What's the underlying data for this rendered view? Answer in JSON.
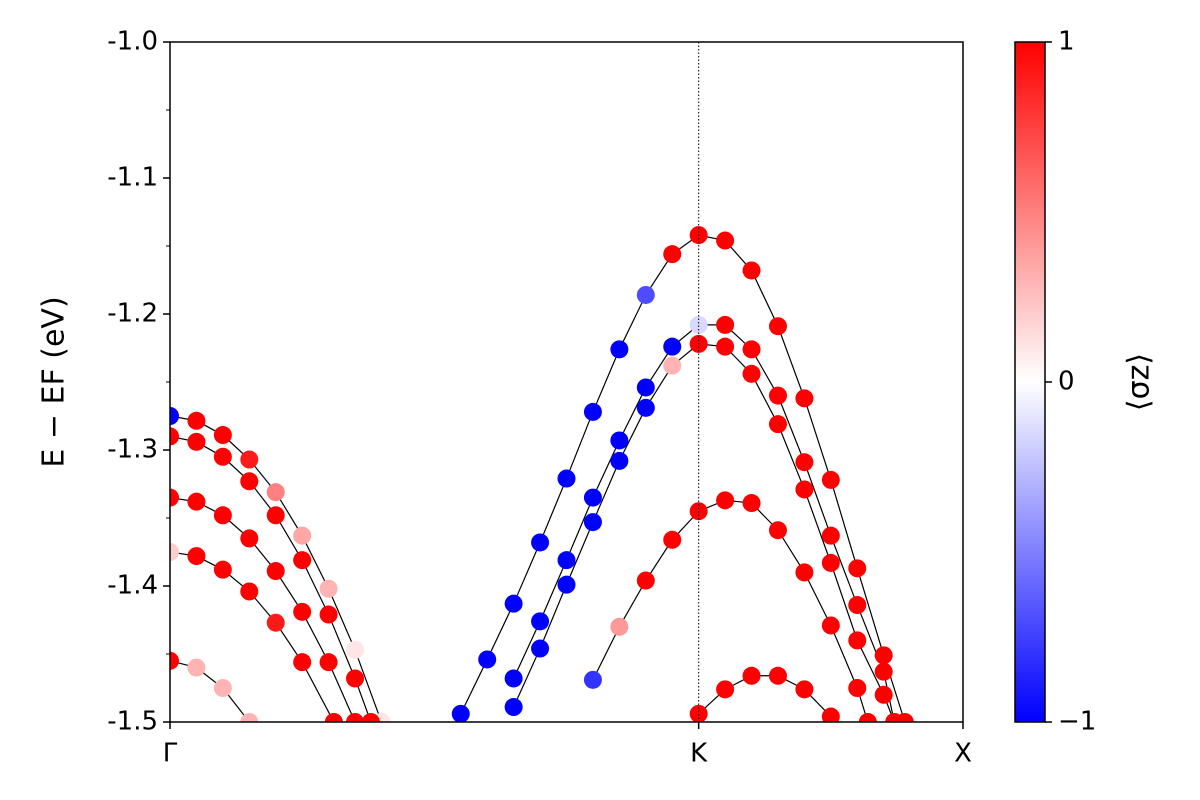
{
  "chart_data": {
    "type": "scatter",
    "ylabel": "E − EF (eV)",
    "xlim": [
      0,
      1.5
    ],
    "ylim": [
      -1.5,
      -1.0
    ],
    "xticks": [
      {
        "value": 0,
        "label": "Γ"
      },
      {
        "value": 1,
        "label": "K"
      },
      {
        "value": 1.5,
        "label": "X"
      }
    ],
    "yticks": [
      {
        "value": -1.0,
        "label": "-1.0"
      },
      -1.1,
      -1.2,
      -1.3,
      -1.4,
      -1.5
    ],
    "yminor": [
      -1.05,
      -1.15,
      -1.25,
      -1.35,
      -1.45
    ],
    "line_color": "#000000",
    "colorbar": {
      "label": "⟨σz⟩",
      "lim": [
        -1,
        1
      ],
      "ticks": [
        {
          "value": -1,
          "label": "−1"
        },
        0,
        1
      ],
      "colors": [
        "#0000ff",
        "#ffffff",
        "#ff0000"
      ]
    },
    "series": [
      {
        "x": [
          0,
          0.05,
          0.1,
          0.15,
          0.2,
          0.25,
          0.3,
          0.35,
          0.4
        ],
        "values": [
          -1.275,
          -1.2785,
          -1.289,
          -1.307,
          -1.331,
          -1.363,
          -1.402,
          -1.447,
          -1.5
        ],
        "spin": [
          -1,
          1,
          1,
          0.9,
          0.5,
          0.35,
          0.3,
          0.1,
          0.1
        ]
      },
      {
        "x": [
          0,
          0.05,
          0.1,
          0.15,
          0.2,
          0.25,
          0.3,
          0.35,
          0.38
        ],
        "values": [
          -1.29,
          -1.294,
          -1.305,
          -1.323,
          -1.348,
          -1.381,
          -1.421,
          -1.468,
          -1.5
        ],
        "spin": [
          1,
          1,
          1,
          1,
          1,
          1,
          1,
          1,
          1
        ]
      },
      {
        "x": [
          0,
          0.05,
          0.1,
          0.15,
          0.2,
          0.25,
          0.3,
          0.35
        ],
        "values": [
          -1.335,
          -1.338,
          -1.348,
          -1.365,
          -1.389,
          -1.419,
          -1.456,
          -1.5
        ],
        "spin": [
          1,
          1,
          1,
          1,
          1,
          1,
          1,
          1
        ]
      },
      {
        "x": [
          0,
          0.05,
          0.1,
          0.15,
          0.2,
          0.25,
          0.31
        ],
        "values": [
          -1.375,
          -1.378,
          -1.388,
          -1.404,
          -1.427,
          -1.456,
          -1.5
        ],
        "spin": [
          0.2,
          1,
          1,
          1,
          0.9,
          1,
          1
        ]
      },
      {
        "x": [
          0,
          0.05,
          0.1,
          0.15
        ],
        "values": [
          -1.455,
          -1.46,
          -1.475,
          -1.5
        ],
        "spin": [
          1,
          0.3,
          0.3,
          0.3
        ]
      },
      {
        "x": [
          0.55,
          0.6,
          0.65,
          0.7,
          0.75,
          0.8,
          0.85,
          0.9,
          0.95,
          1,
          1.05,
          1.1,
          1.15,
          1.2,
          1.25,
          1.3,
          1.35,
          1.39
        ],
        "values": [
          -1.494,
          -1.454,
          -1.413,
          -1.368,
          -1.321,
          -1.272,
          -1.226,
          -1.186,
          -1.156,
          -1.142,
          -1.146,
          -1.168,
          -1.209,
          -1.262,
          -1.322,
          -1.387,
          -1.451,
          -1.5
        ],
        "spin": [
          -1,
          -1,
          -1,
          -1,
          -1,
          -1,
          -1,
          -0.7,
          1,
          1,
          1,
          1,
          1,
          1,
          1,
          1,
          1,
          1
        ]
      },
      {
        "x": [
          0.65,
          0.7,
          0.75,
          0.8,
          0.85,
          0.9,
          0.95,
          1,
          1.05,
          1.1,
          1.15,
          1.2,
          1.25,
          1.3,
          1.35,
          1.37
        ],
        "values": [
          -1.468,
          -1.426,
          -1.381,
          -1.335,
          -1.293,
          -1.254,
          -1.224,
          -1.208,
          -1.208,
          -1.226,
          -1.26,
          -1.309,
          -1.363,
          -1.414,
          -1.463,
          -1.5
        ],
        "spin": [
          -1,
          -1,
          -1,
          -1,
          -1,
          -1,
          -1,
          -0.15,
          1,
          1,
          1,
          1,
          1,
          1,
          1,
          1
        ]
      },
      {
        "x": [
          0.65,
          0.7,
          0.75,
          0.8,
          0.85,
          0.9,
          0.95,
          1,
          1.05,
          1.1,
          1.15,
          1.2,
          1.25,
          1.3,
          1.35,
          1.37
        ],
        "values": [
          -1.489,
          -1.446,
          -1.399,
          -1.353,
          -1.308,
          -1.269,
          -1.238,
          -1.222,
          -1.224,
          -1.244,
          -1.281,
          -1.329,
          -1.383,
          -1.44,
          -1.48,
          -1.5
        ],
        "spin": [
          -1,
          -1,
          -1,
          -1,
          -1,
          -1,
          0.3,
          1,
          1,
          1,
          1,
          1,
          1,
          1,
          1,
          1
        ]
      },
      {
        "x": [
          0.8,
          0.85,
          0.9,
          0.95,
          1,
          1.05,
          1.1,
          1.15,
          1.2,
          1.25,
          1.3,
          1.32
        ],
        "values": [
          -1.469,
          -1.43,
          -1.396,
          -1.366,
          -1.345,
          -1.337,
          -1.339,
          -1.359,
          -1.39,
          -1.429,
          -1.475,
          -1.5
        ],
        "spin": [
          -0.8,
          0.4,
          1,
          1,
          1,
          1,
          1,
          1,
          1,
          1,
          1,
          1
        ]
      },
      {
        "x": [
          1,
          1.05,
          1.1,
          1.15,
          1.2,
          1.25
        ],
        "values": [
          -1.494,
          -1.476,
          -1.466,
          -1.466,
          -1.476,
          -1.496
        ],
        "spin": [
          1,
          1,
          1,
          1,
          1,
          1
        ]
      }
    ]
  }
}
